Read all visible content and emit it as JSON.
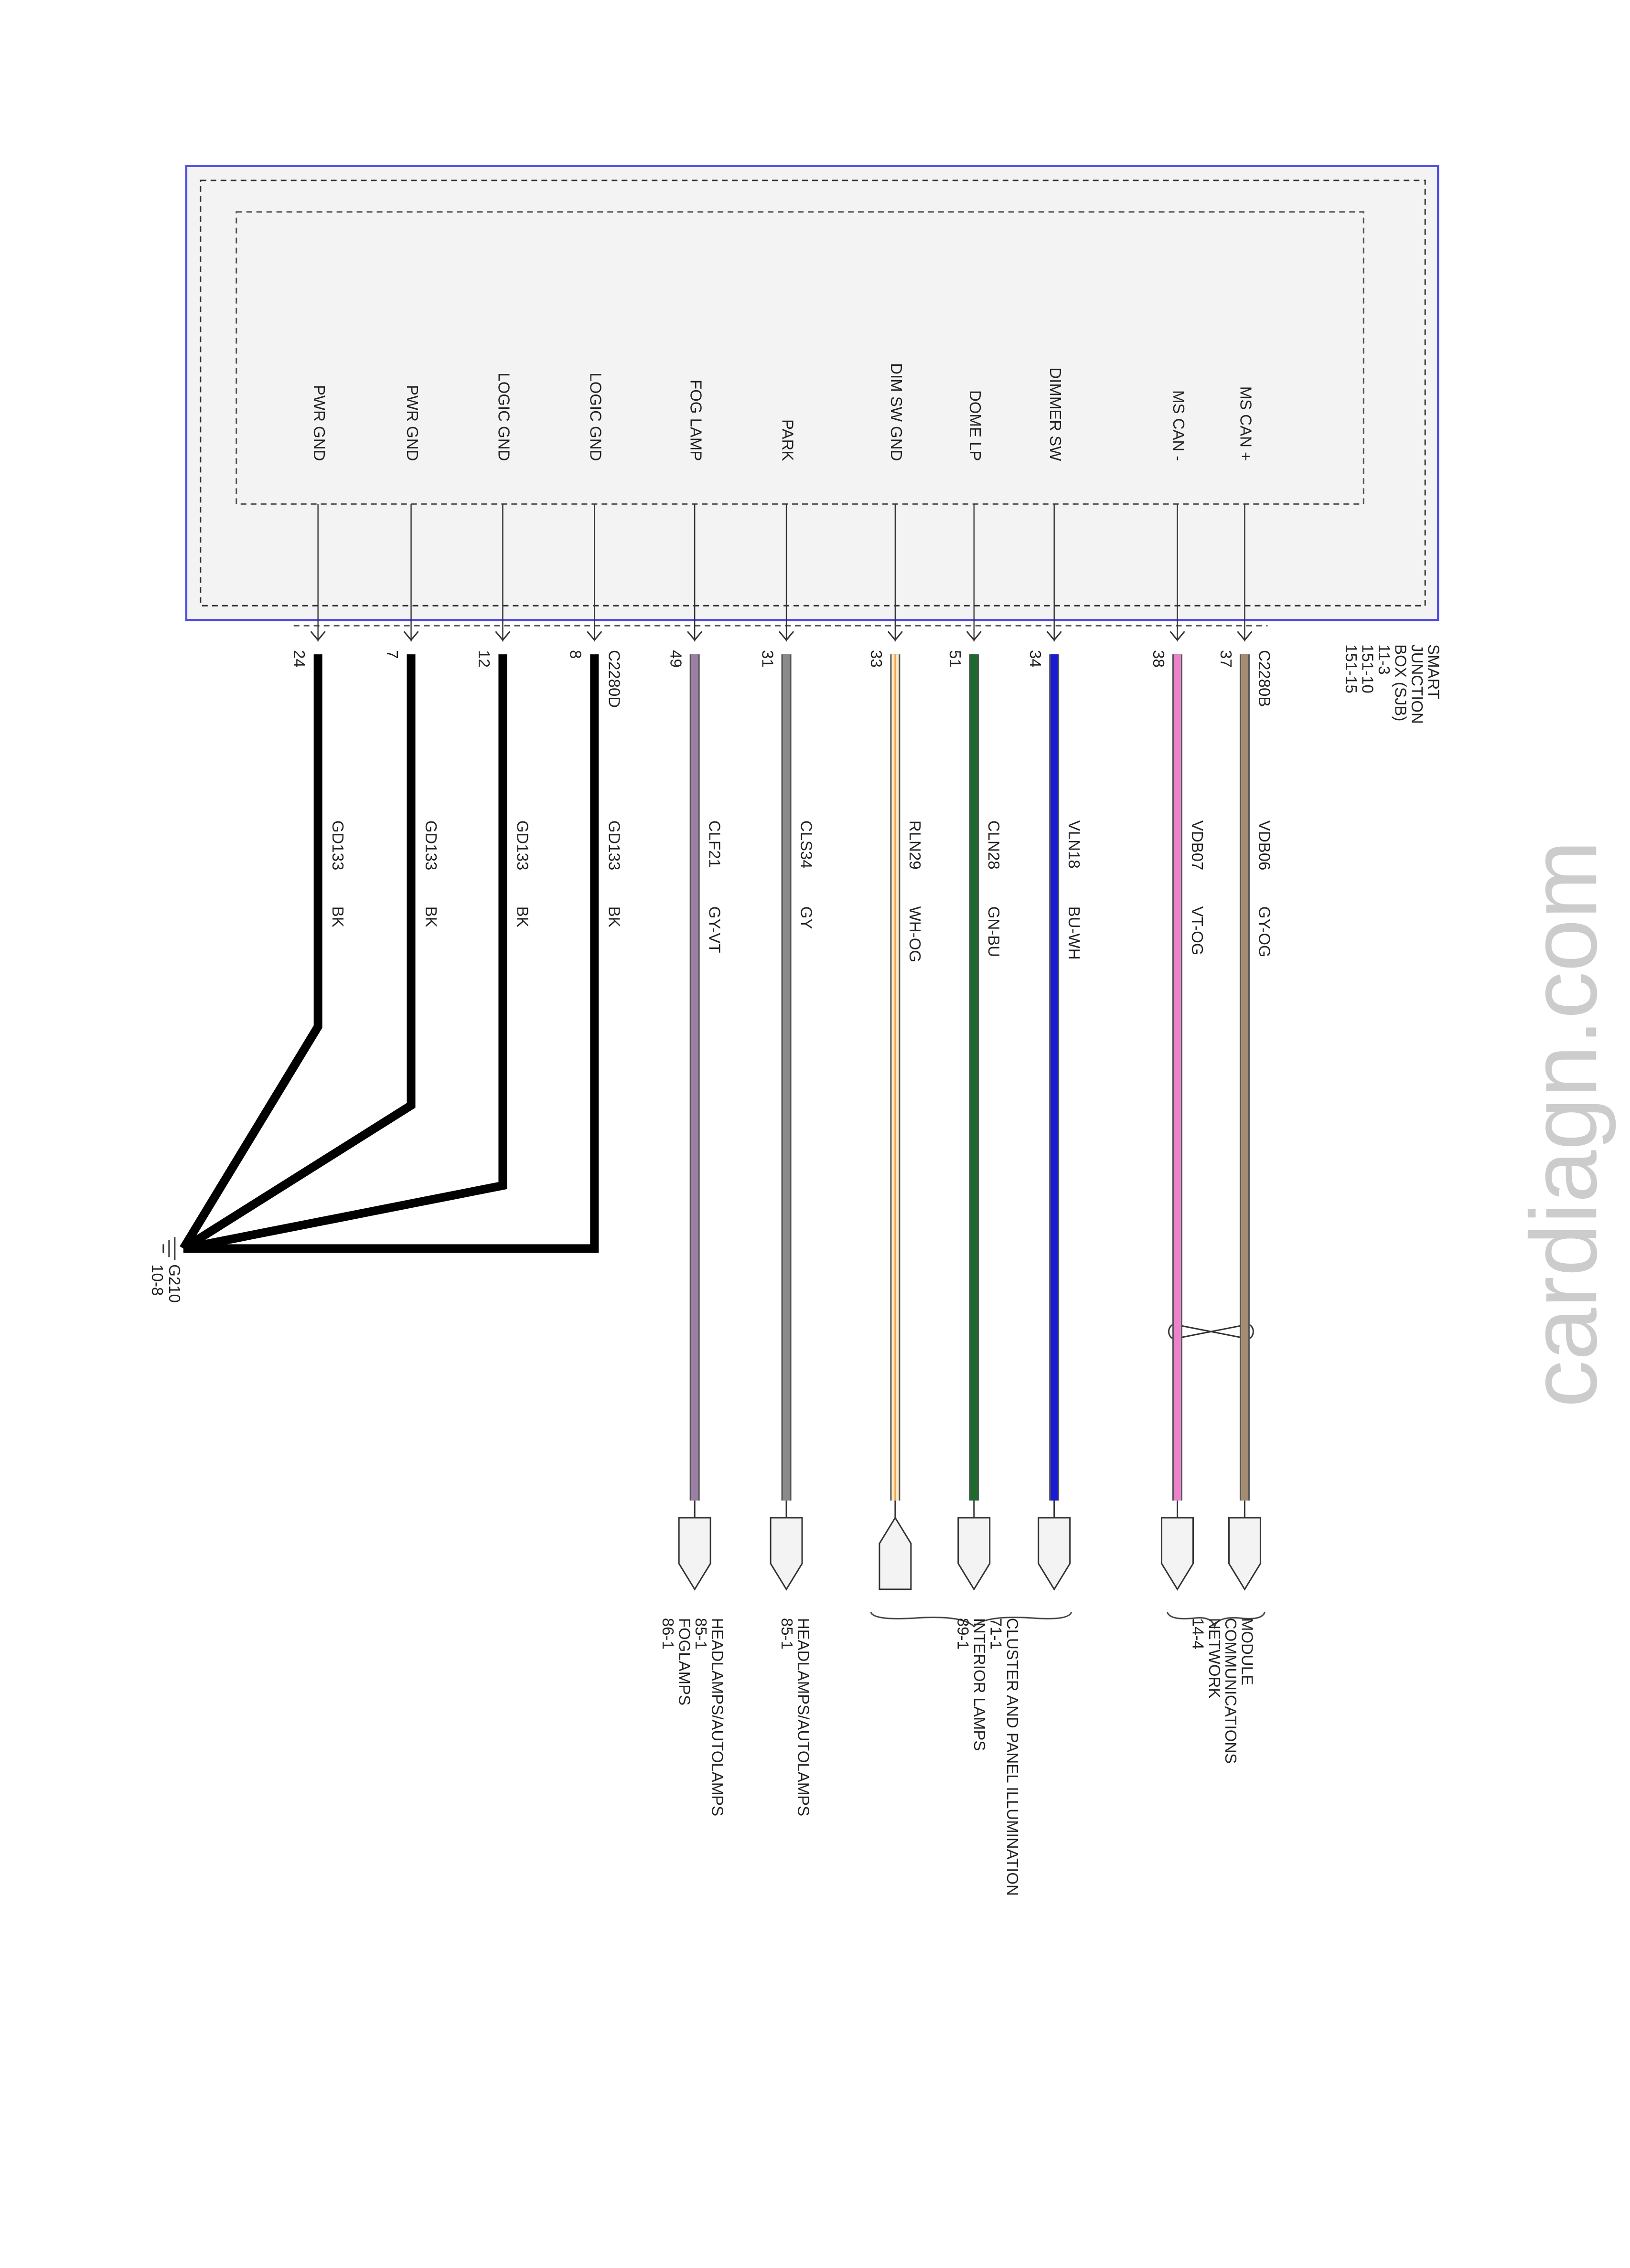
{
  "module": {
    "lines": [
      "SMART",
      "JUNCTION",
      "BOX (SJB)",
      "11-3",
      "151-10",
      "151-15"
    ]
  },
  "connectors": [
    "C2280D",
    "C2280B"
  ],
  "pins": [
    {
      "label": "PWR GND",
      "pin": "24",
      "circuit": "GD133",
      "color_code": "BK",
      "wire": "#000000"
    },
    {
      "label": "PWR GND",
      "pin": "7",
      "circuit": "GD133",
      "color_code": "BK",
      "wire": "#000000"
    },
    {
      "label": "LOGIC GND",
      "pin": "12",
      "circuit": "GD133",
      "color_code": "BK",
      "wire": "#000000"
    },
    {
      "label": "LOGIC GND",
      "pin": "8",
      "circuit": "GD133",
      "color_code": "BK",
      "wire": "#000000"
    },
    {
      "label": "FOG LAMP",
      "pin": "49",
      "circuit": "CLF21",
      "color_code": "GY-VT",
      "wire": "#9c7fa4"
    },
    {
      "label": "PARK",
      "pin": "31",
      "circuit": "CLS34",
      "color_code": "GY",
      "wire": "#8a8a8a"
    },
    {
      "label": "DIM SW GND",
      "pin": "33",
      "circuit": "RLN29",
      "color_code": "WH-OG",
      "wire": "#fbe9c8"
    },
    {
      "label": "DOME LP",
      "pin": "51",
      "circuit": "CLN28",
      "color_code": "GN-BU",
      "wire": "#1c6b2c"
    },
    {
      "label": "DIMMER SW",
      "pin": "34",
      "circuit": "VLN18",
      "color_code": "BU-WH",
      "wire": "#1a1ad0"
    },
    {
      "label": "MS CAN -",
      "pin": "38",
      "circuit": "VDB07",
      "color_code": "VT-OG",
      "wire": "#ec82cc"
    },
    {
      "label": "MS CAN +",
      "pin": "37",
      "circuit": "VDB06",
      "color_code": "GY-OG",
      "wire": "#a38d72"
    }
  ],
  "ground": {
    "id": "G210",
    "page": "10-8"
  },
  "destinations": [
    {
      "lines": [
        "HEADLAMPS/AUTOLAMPS",
        "85-1",
        "FOGLAMPS",
        "86-1"
      ]
    },
    {
      "lines": [
        "HEADLAMPS/AUTOLAMPS",
        "85-1"
      ]
    },
    {
      "lines": [
        "CLUSTER AND PANEL ILLUMINATION",
        "71-1",
        "INTERIOR LAMPS",
        "89-1"
      ]
    },
    {
      "lines": [
        "MODULE",
        "COMMUNICATIONS",
        "NETWORK",
        "14-4"
      ]
    }
  ],
  "watermark": "cardiagn.com"
}
